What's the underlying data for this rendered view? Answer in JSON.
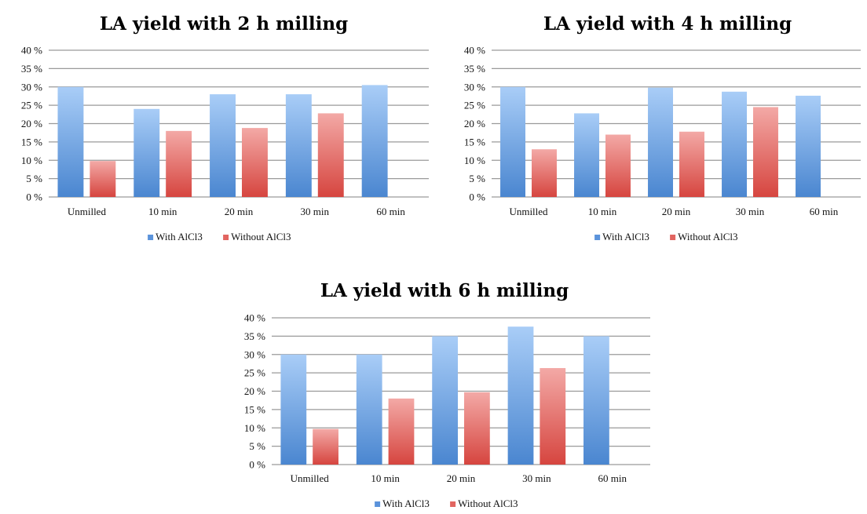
{
  "chart_data": [
    {
      "type": "bar",
      "title": "LA yield with 2 h milling",
      "categories": [
        "Unmilled",
        "10 min",
        "20 min",
        "30 min",
        "60 min"
      ],
      "series": [
        {
          "name": "With AlCl3",
          "values": [
            30,
            24,
            28,
            28,
            30.5
          ],
          "color": "#5b9bd5"
        },
        {
          "name": "Without AlCl3",
          "values": [
            9.8,
            18,
            18.8,
            22.8,
            null
          ],
          "color": "#e05a55"
        }
      ],
      "yticks": [
        "0 %",
        "5 %",
        "10 %",
        "15 %",
        "20 %",
        "25 %",
        "30 %",
        "35 %",
        "40 %"
      ],
      "ylim": [
        0,
        40
      ],
      "grid": true,
      "legend": "bottom"
    },
    {
      "type": "bar",
      "title": "LA yield with 4 h milling",
      "categories": [
        "Unmilled",
        "10 min",
        "20 min",
        "30 min",
        "60 min"
      ],
      "series": [
        {
          "name": "With AlCl3",
          "values": [
            30,
            22.8,
            29.8,
            28.7,
            27.6
          ],
          "color": "#5b9bd5"
        },
        {
          "name": "Without AlCl3",
          "values": [
            13,
            17,
            17.8,
            24.5,
            null
          ],
          "color": "#e05a55"
        }
      ],
      "yticks": [
        "0 %",
        "5 %",
        "10 %",
        "15 %",
        "20 %",
        "25 %",
        "30 %",
        "35 %",
        "40 %"
      ],
      "ylim": [
        0,
        40
      ],
      "grid": true,
      "legend": "bottom"
    },
    {
      "type": "bar",
      "title": "LA yield with 6 h milling",
      "categories": [
        "Unmilled",
        "10 min",
        "20 min",
        "30 min",
        "60 min"
      ],
      "series": [
        {
          "name": "With AlCl3",
          "values": [
            30,
            30,
            35,
            37.6,
            35
          ],
          "color": "#5b9bd5"
        },
        {
          "name": "Without AlCl3",
          "values": [
            9.7,
            18,
            19.7,
            26.3,
            null
          ],
          "color": "#e05a55"
        }
      ],
      "yticks": [
        "0 %",
        "5 %",
        "10 %",
        "15 %",
        "20 %",
        "25 %",
        "30 %",
        "35 %",
        "40 %"
      ],
      "ylim": [
        0,
        40
      ],
      "grid": true,
      "legend": "bottom"
    }
  ]
}
